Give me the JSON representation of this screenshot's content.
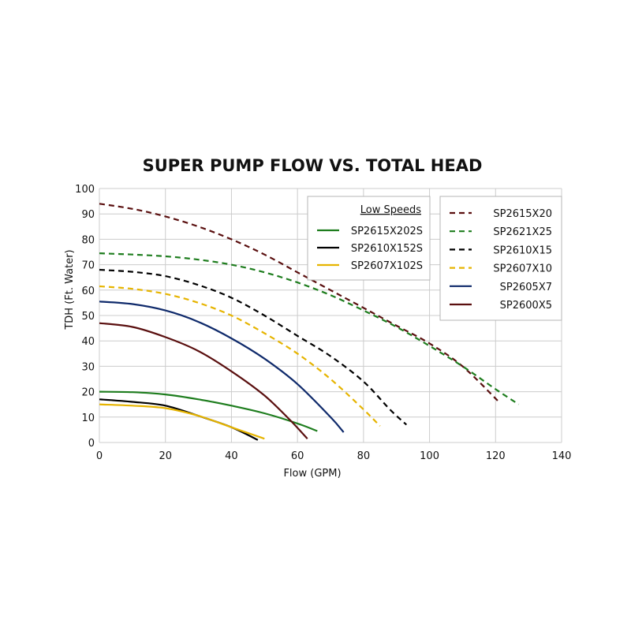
{
  "chart_data": {
    "type": "line",
    "title": "SUPER PUMP FLOW VS. TOTAL HEAD",
    "xlabel": "Flow (GPM)",
    "ylabel": "TDH (Ft. Water)",
    "xlim": [
      0,
      140
    ],
    "ylim": [
      0,
      100
    ],
    "xticks": [
      0,
      20,
      40,
      60,
      80,
      100,
      120,
      140
    ],
    "yticks": [
      0,
      10,
      20,
      30,
      40,
      50,
      60,
      70,
      80,
      90,
      100
    ],
    "grid": true,
    "legend_low_title": "Low Speeds",
    "legends": [
      {
        "placement": "top-center",
        "title": "Low Speeds",
        "entries": [
          "SP2615X202S",
          "SP2610X152S",
          "SP2607X102S"
        ]
      },
      {
        "placement": "top-right",
        "entries": [
          "SP2615X20",
          "SP2621X25",
          "SP2610X15",
          "SP2607X10",
          "SP2605X7",
          "SP2600X5"
        ]
      }
    ],
    "series": [
      {
        "name": "SP2615X202S",
        "color": "#1e7d1e",
        "dash": "solid",
        "legend": "low",
        "points": [
          [
            0,
            20
          ],
          [
            10,
            19.8
          ],
          [
            20,
            18.9
          ],
          [
            30,
            17
          ],
          [
            40,
            14.5
          ],
          [
            50,
            11.5
          ],
          [
            60,
            7.5
          ],
          [
            66,
            4.5
          ]
        ]
      },
      {
        "name": "SP2610X152S",
        "color": "#000000",
        "dash": "solid",
        "legend": "low",
        "points": [
          [
            0,
            17
          ],
          [
            10,
            16
          ],
          [
            20,
            14.5
          ],
          [
            30,
            10.5
          ],
          [
            40,
            6
          ],
          [
            48,
            1
          ]
        ]
      },
      {
        "name": "SP2607X102S",
        "color": "#e6b400",
        "dash": "solid",
        "legend": "low",
        "points": [
          [
            0,
            15
          ],
          [
            10,
            14.5
          ],
          [
            20,
            13.5
          ],
          [
            30,
            10.5
          ],
          [
            40,
            6
          ],
          [
            50,
            1.5
          ]
        ]
      },
      {
        "name": "SP2615X20",
        "color": "#5a0f0f",
        "dash": "dashed",
        "legend": "main",
        "points": [
          [
            0,
            94
          ],
          [
            10,
            92
          ],
          [
            20,
            89
          ],
          [
            30,
            85
          ],
          [
            40,
            80
          ],
          [
            50,
            74
          ],
          [
            60,
            67
          ],
          [
            70,
            60
          ],
          [
            80,
            53
          ],
          [
            90,
            46
          ],
          [
            100,
            39
          ],
          [
            110,
            30
          ],
          [
            121,
            16
          ]
        ]
      },
      {
        "name": "SP2621X25",
        "color": "#1e7d1e",
        "dash": "dashed",
        "legend": "main",
        "points": [
          [
            0,
            74.5
          ],
          [
            10,
            74
          ],
          [
            20,
            73.3
          ],
          [
            30,
            72
          ],
          [
            40,
            70
          ],
          [
            50,
            67
          ],
          [
            60,
            63
          ],
          [
            70,
            58
          ],
          [
            80,
            52
          ],
          [
            90,
            45.5
          ],
          [
            100,
            38
          ],
          [
            110,
            30
          ],
          [
            120,
            21
          ],
          [
            127,
            15
          ]
        ]
      },
      {
        "name": "SP2610X15",
        "color": "#000000",
        "dash": "dashed",
        "legend": "main",
        "points": [
          [
            0,
            68
          ],
          [
            10,
            67.2
          ],
          [
            20,
            65.5
          ],
          [
            30,
            62
          ],
          [
            40,
            57
          ],
          [
            50,
            50
          ],
          [
            60,
            42
          ],
          [
            70,
            34
          ],
          [
            80,
            24
          ],
          [
            88,
            13
          ],
          [
            93,
            7
          ]
        ]
      },
      {
        "name": "SP2607X10",
        "color": "#e6b400",
        "dash": "dashed",
        "legend": "main",
        "points": [
          [
            0,
            61.5
          ],
          [
            10,
            60.5
          ],
          [
            20,
            58.5
          ],
          [
            30,
            55
          ],
          [
            40,
            50
          ],
          [
            50,
            43
          ],
          [
            60,
            35
          ],
          [
            70,
            25
          ],
          [
            80,
            13
          ],
          [
            85,
            6.5
          ]
        ]
      },
      {
        "name": "SP2605X7",
        "color": "#0f2a6b",
        "dash": "solid",
        "legend": "main",
        "points": [
          [
            0,
            55.5
          ],
          [
            10,
            54.5
          ],
          [
            20,
            52
          ],
          [
            30,
            47.5
          ],
          [
            40,
            41
          ],
          [
            50,
            33
          ],
          [
            60,
            23
          ],
          [
            70,
            10
          ],
          [
            74,
            4
          ]
        ]
      },
      {
        "name": "SP2600X5",
        "color": "#5a0f0f",
        "dash": "solid",
        "legend": "main",
        "points": [
          [
            0,
            47
          ],
          [
            10,
            45.5
          ],
          [
            20,
            41.5
          ],
          [
            30,
            36
          ],
          [
            40,
            28
          ],
          [
            50,
            18.5
          ],
          [
            58,
            8.5
          ],
          [
            63,
            1.5
          ]
        ]
      }
    ]
  }
}
